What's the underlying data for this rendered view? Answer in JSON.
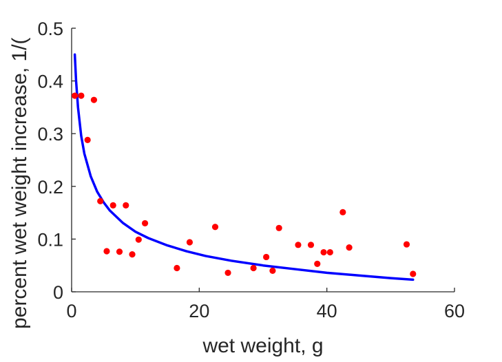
{
  "chart_data": {
    "type": "scatter",
    "xlabel": "wet weight, g",
    "ylabel": "percent wet weight increase, 1/(",
    "xlim": [
      0,
      60
    ],
    "ylim": [
      0,
      0.5
    ],
    "x_ticks": [
      "0",
      "20",
      "40",
      "60"
    ],
    "y_ticks": [
      "0",
      "0.1",
      "0.2",
      "0.3",
      "0.4",
      "0.5"
    ],
    "grid": false,
    "series": [
      {
        "kind": "points",
        "color": "#ff0000",
        "points": [
          [
            0.5,
            0.372
          ],
          [
            1.5,
            0.372
          ],
          [
            2.5,
            0.288
          ],
          [
            3.5,
            0.364
          ],
          [
            4.5,
            0.172
          ],
          [
            5.5,
            0.077
          ],
          [
            6.5,
            0.164
          ],
          [
            7.5,
            0.076
          ],
          [
            8.5,
            0.164
          ],
          [
            9.5,
            0.071
          ],
          [
            10.5,
            0.099
          ],
          [
            11.5,
            0.13
          ],
          [
            16.5,
            0.045
          ],
          [
            18.5,
            0.094
          ],
          [
            22.5,
            0.123
          ],
          [
            24.5,
            0.036
          ],
          [
            28.5,
            0.045
          ],
          [
            30.5,
            0.066
          ],
          [
            31.5,
            0.04
          ],
          [
            32.5,
            0.121
          ],
          [
            35.5,
            0.089
          ],
          [
            37.5,
            0.089
          ],
          [
            38.5,
            0.053
          ],
          [
            39.5,
            0.075
          ],
          [
            40.5,
            0.075
          ],
          [
            42.5,
            0.151
          ],
          [
            43.5,
            0.084
          ],
          [
            52.5,
            0.09
          ],
          [
            53.5,
            0.034
          ]
        ]
      },
      {
        "kind": "curve",
        "color": "#0000ff",
        "points": [
          [
            0.5,
            0.45
          ],
          [
            0.7,
            0.4
          ],
          [
            1.0,
            0.35
          ],
          [
            1.5,
            0.296
          ],
          [
            2.0,
            0.262
          ],
          [
            3.0,
            0.219
          ],
          [
            4.0,
            0.19
          ],
          [
            5.0,
            0.17
          ],
          [
            6.0,
            0.154
          ],
          [
            8.0,
            0.131
          ],
          [
            10.0,
            0.114
          ],
          [
            12.0,
            0.102
          ],
          [
            15.0,
            0.088
          ],
          [
            18.0,
            0.077
          ],
          [
            21.0,
            0.068
          ],
          [
            25.0,
            0.059
          ],
          [
            30.0,
            0.05
          ],
          [
            35.0,
            0.043
          ],
          [
            40.0,
            0.036
          ],
          [
            45.0,
            0.031
          ],
          [
            50.0,
            0.026
          ],
          [
            53.5,
            0.023
          ]
        ]
      }
    ]
  }
}
